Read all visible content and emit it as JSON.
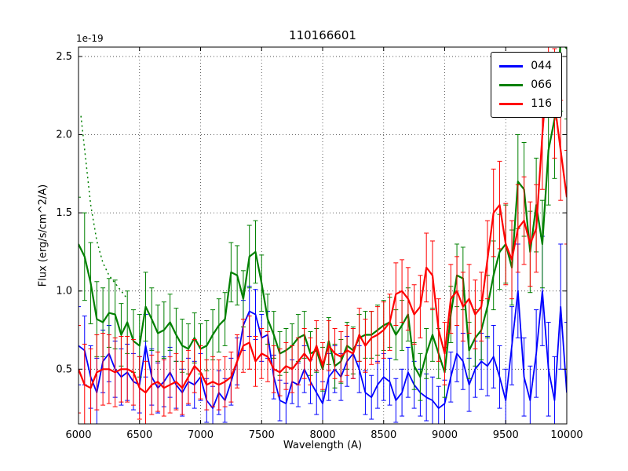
{
  "chart_data": {
    "type": "line",
    "title": "110166601",
    "xlabel": "Wavelength (A)",
    "ylabel": "Flux (erg/s/cm^2/A)",
    "offset_label": "1e-19",
    "xlim": [
      6000,
      10000
    ],
    "ylim": [
      0.15,
      2.56
    ],
    "xticks": [
      6000,
      6500,
      7000,
      7500,
      8000,
      8500,
      9000,
      9500,
      10000
    ],
    "yticks": [
      0.5,
      1.0,
      1.5,
      2.0,
      2.5
    ],
    "grid": true,
    "legend_position": "upper right",
    "x": [
      6000,
      6050,
      6100,
      6150,
      6200,
      6250,
      6300,
      6350,
      6400,
      6450,
      6500,
      6550,
      6600,
      6650,
      6700,
      6750,
      6800,
      6850,
      6900,
      6950,
      7000,
      7050,
      7100,
      7150,
      7200,
      7250,
      7300,
      7350,
      7400,
      7450,
      7500,
      7550,
      7600,
      7650,
      7700,
      7750,
      7800,
      7850,
      7900,
      7950,
      8000,
      8050,
      8100,
      8150,
      8200,
      8250,
      8300,
      8350,
      8400,
      8450,
      8500,
      8550,
      8600,
      8650,
      8700,
      8750,
      8800,
      8850,
      8900,
      8950,
      9000,
      9050,
      9100,
      9150,
      9200,
      9250,
      9300,
      9350,
      9400,
      9450,
      9500,
      9550,
      9600,
      9650,
      9700,
      9750,
      9800,
      9850,
      9900,
      9950,
      10000
    ],
    "series": [
      {
        "name": "044",
        "color": "#0000ff",
        "line_width": 1.8,
        "values": [
          0.65,
          0.62,
          0.45,
          0.35,
          0.55,
          0.6,
          0.5,
          0.45,
          0.48,
          0.42,
          0.4,
          0.65,
          0.45,
          0.38,
          0.42,
          0.48,
          0.4,
          0.35,
          0.42,
          0.4,
          0.45,
          0.3,
          0.25,
          0.35,
          0.3,
          0.42,
          0.55,
          0.78,
          0.87,
          0.85,
          0.7,
          0.72,
          0.45,
          0.3,
          0.28,
          0.42,
          0.4,
          0.5,
          0.42,
          0.35,
          0.28,
          0.45,
          0.5,
          0.45,
          0.55,
          0.6,
          0.5,
          0.35,
          0.32,
          0.4,
          0.45,
          0.42,
          0.3,
          0.35,
          0.48,
          0.4,
          0.35,
          0.32,
          0.3,
          0.25,
          0.28,
          0.45,
          0.6,
          0.55,
          0.4,
          0.5,
          0.55,
          0.52,
          0.58,
          0.45,
          0.3,
          0.65,
          1.0,
          0.45,
          0.3,
          0.6,
          1.0,
          0.5,
          0.3,
          0.9,
          0.35
        ],
        "err": [
          0.25,
          0.22,
          0.2,
          0.22,
          0.2,
          0.18,
          0.18,
          0.18,
          0.18,
          0.18,
          0.18,
          0.2,
          0.18,
          0.16,
          0.16,
          0.16,
          0.15,
          0.15,
          0.15,
          0.15,
          0.15,
          0.14,
          0.14,
          0.14,
          0.14,
          0.15,
          0.15,
          0.16,
          0.16,
          0.16,
          0.15,
          0.15,
          0.14,
          0.13,
          0.13,
          0.14,
          0.14,
          0.15,
          0.14,
          0.14,
          0.14,
          0.15,
          0.15,
          0.15,
          0.16,
          0.16,
          0.15,
          0.14,
          0.14,
          0.15,
          0.15,
          0.15,
          0.14,
          0.15,
          0.16,
          0.15,
          0.15,
          0.15,
          0.15,
          0.14,
          0.15,
          0.16,
          0.18,
          0.18,
          0.17,
          0.18,
          0.18,
          0.19,
          0.2,
          0.2,
          0.2,
          0.25,
          0.3,
          0.25,
          0.22,
          0.28,
          0.35,
          0.3,
          0.28,
          0.4,
          0.45
        ]
      },
      {
        "name": "066",
        "color": "#008000",
        "line_width": 2.2,
        "values": [
          1.3,
          1.22,
          1.05,
          0.82,
          0.8,
          0.86,
          0.85,
          0.72,
          0.8,
          0.68,
          0.65,
          0.9,
          0.82,
          0.73,
          0.75,
          0.8,
          0.72,
          0.65,
          0.63,
          0.7,
          0.63,
          0.65,
          0.72,
          0.78,
          0.82,
          1.12,
          1.1,
          0.95,
          1.22,
          1.25,
          1.05,
          0.82,
          0.72,
          0.6,
          0.62,
          0.65,
          0.7,
          0.72,
          0.6,
          0.62,
          0.5,
          0.68,
          0.52,
          0.55,
          0.65,
          0.62,
          0.7,
          0.72,
          0.72,
          0.75,
          0.78,
          0.8,
          0.72,
          0.78,
          0.85,
          0.52,
          0.45,
          0.6,
          0.72,
          0.6,
          0.48,
          0.85,
          1.1,
          1.08,
          0.62,
          0.7,
          0.75,
          0.9,
          1.1,
          1.25,
          1.3,
          1.15,
          1.7,
          1.65,
          1.25,
          1.55,
          1.3,
          1.9,
          2.1,
          2.6,
          2.55
        ],
        "err": [
          0.3,
          0.28,
          0.26,
          0.24,
          0.22,
          0.22,
          0.22,
          0.2,
          0.2,
          0.2,
          0.2,
          0.22,
          0.2,
          0.18,
          0.18,
          0.18,
          0.17,
          0.17,
          0.16,
          0.16,
          0.16,
          0.16,
          0.16,
          0.17,
          0.17,
          0.19,
          0.19,
          0.18,
          0.2,
          0.2,
          0.18,
          0.16,
          0.15,
          0.14,
          0.14,
          0.14,
          0.15,
          0.15,
          0.14,
          0.14,
          0.14,
          0.15,
          0.14,
          0.14,
          0.15,
          0.15,
          0.15,
          0.15,
          0.15,
          0.16,
          0.16,
          0.16,
          0.16,
          0.16,
          0.17,
          0.15,
          0.15,
          0.16,
          0.17,
          0.16,
          0.16,
          0.18,
          0.2,
          0.2,
          0.18,
          0.18,
          0.19,
          0.2,
          0.22,
          0.24,
          0.25,
          0.24,
          0.3,
          0.3,
          0.26,
          0.3,
          0.28,
          0.35,
          0.38,
          0.45,
          0.45
        ]
      },
      {
        "name": "116",
        "color": "#ff0000",
        "line_width": 2.2,
        "values": [
          0.5,
          0.4,
          0.38,
          0.48,
          0.5,
          0.5,
          0.48,
          0.5,
          0.5,
          0.48,
          0.38,
          0.35,
          0.4,
          0.42,
          0.38,
          0.4,
          0.42,
          0.38,
          0.45,
          0.52,
          0.48,
          0.4,
          0.42,
          0.4,
          0.42,
          0.45,
          0.55,
          0.65,
          0.67,
          0.55,
          0.6,
          0.58,
          0.5,
          0.48,
          0.52,
          0.5,
          0.55,
          0.6,
          0.55,
          0.65,
          0.52,
          0.65,
          0.6,
          0.58,
          0.62,
          0.6,
          0.72,
          0.65,
          0.7,
          0.72,
          0.75,
          0.8,
          0.98,
          1.0,
          0.95,
          0.85,
          0.9,
          1.15,
          1.1,
          0.75,
          0.6,
          0.95,
          1.0,
          0.9,
          0.95,
          0.85,
          0.9,
          1.2,
          1.5,
          1.55,
          1.3,
          1.2,
          1.4,
          1.45,
          1.3,
          1.4,
          2.0,
          2.5,
          2.2,
          1.9,
          1.6
        ],
        "err": [
          0.28,
          0.26,
          0.25,
          0.24,
          0.23,
          0.22,
          0.22,
          0.21,
          0.21,
          0.21,
          0.2,
          0.2,
          0.19,
          0.19,
          0.18,
          0.18,
          0.18,
          0.17,
          0.17,
          0.17,
          0.17,
          0.16,
          0.16,
          0.16,
          0.16,
          0.16,
          0.17,
          0.17,
          0.17,
          0.16,
          0.16,
          0.16,
          0.15,
          0.15,
          0.15,
          0.15,
          0.15,
          0.16,
          0.15,
          0.16,
          0.15,
          0.16,
          0.16,
          0.16,
          0.16,
          0.16,
          0.17,
          0.17,
          0.17,
          0.18,
          0.18,
          0.18,
          0.2,
          0.2,
          0.2,
          0.19,
          0.2,
          0.22,
          0.22,
          0.2,
          0.2,
          0.22,
          0.22,
          0.22,
          0.22,
          0.22,
          0.22,
          0.25,
          0.28,
          0.28,
          0.26,
          0.25,
          0.28,
          0.28,
          0.27,
          0.28,
          0.35,
          0.38,
          0.35,
          0.32,
          0.3
        ]
      }
    ],
    "extra_series": [
      {
        "name": "066-dotted",
        "color": "#008000",
        "style": "dotted",
        "x": [
          6020,
          6100,
          6150,
          6200,
          6250,
          6300,
          6350,
          6400
        ],
        "values": [
          2.12,
          1.55,
          1.32,
          1.18,
          1.1,
          1.05,
          1.0,
          0.95
        ]
      }
    ]
  }
}
